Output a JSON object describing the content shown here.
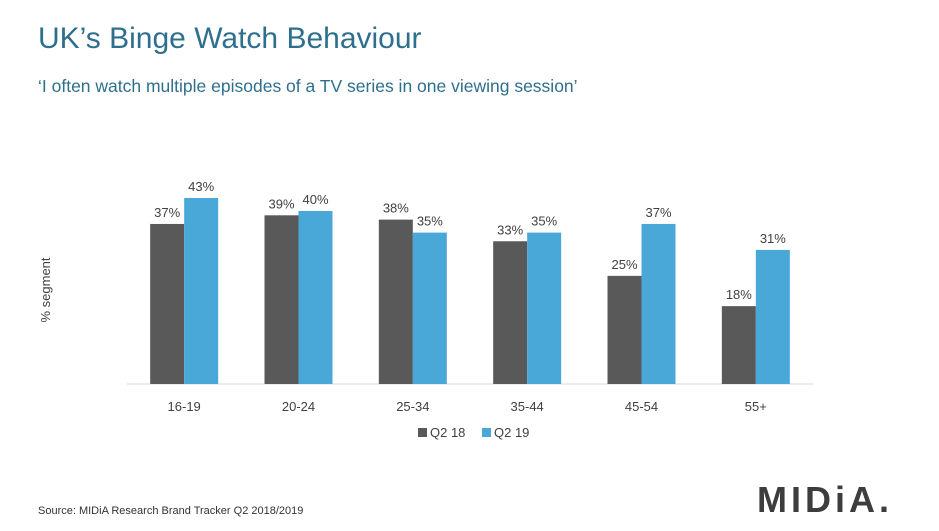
{
  "title": "UK’s Binge Watch Behaviour",
  "subtitle": "‘I often watch multiple episodes of a TV series in one viewing session’",
  "source": "Source: MIDiA Research Brand Tracker Q2 2018/2019",
  "logo": "MIDiA.",
  "chart_data": {
    "type": "bar",
    "title": "",
    "xlabel": "",
    "ylabel": "% segment",
    "categories": [
      "16-19",
      "20-24",
      "25-34",
      "35-44",
      "45-54",
      "55+"
    ],
    "series": [
      {
        "name": "Q2 18",
        "values": [
          37,
          39,
          38,
          33,
          25,
          18
        ],
        "labels": [
          "37%",
          "39%",
          "38%",
          "33%",
          "25%",
          "18%"
        ],
        "color": "#595959"
      },
      {
        "name": "Q2 19",
        "values": [
          43,
          40,
          35,
          35,
          37,
          31
        ],
        "labels": [
          "43%",
          "40%",
          "35%",
          "35%",
          "37%",
          "31%"
        ],
        "color": "#4aa8d8"
      }
    ],
    "ylim": [
      0,
      43
    ],
    "grid": false,
    "legend": "bottom"
  }
}
